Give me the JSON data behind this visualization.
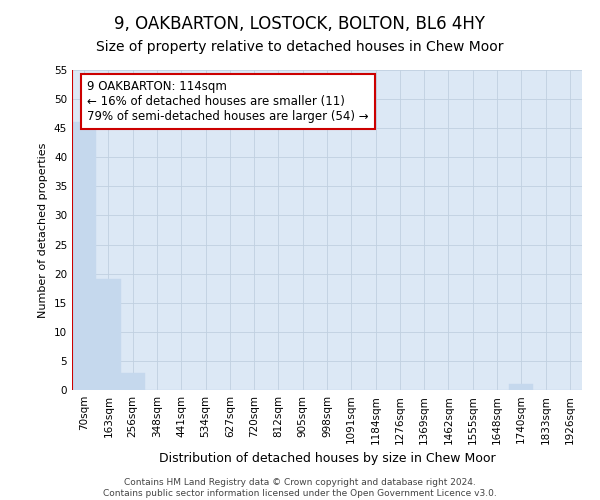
{
  "title": "9, OAKBARTON, LOSTOCK, BOLTON, BL6 4HY",
  "subtitle": "Size of property relative to detached houses in Chew Moor",
  "xlabel": "Distribution of detached houses by size in Chew Moor",
  "ylabel": "Number of detached properties",
  "categories": [
    "70sqm",
    "163sqm",
    "256sqm",
    "348sqm",
    "441sqm",
    "534sqm",
    "627sqm",
    "720sqm",
    "812sqm",
    "905sqm",
    "998sqm",
    "1091sqm",
    "1184sqm",
    "1276sqm",
    "1369sqm",
    "1462sqm",
    "1555sqm",
    "1648sqm",
    "1740sqm",
    "1833sqm",
    "1926sqm"
  ],
  "values": [
    46,
    19,
    3,
    0,
    0,
    0,
    0,
    0,
    0,
    0,
    0,
    0,
    0,
    0,
    0,
    0,
    0,
    0,
    1,
    0,
    0
  ],
  "bar_color": "#c5d8ed",
  "bar_edge_color": "#c5d8ed",
  "grid_color": "#c0d0e0",
  "background_color": "#dce8f5",
  "vline_color": "#cc0000",
  "annotation_text": "9 OAKBARTON: 114sqm\n← 16% of detached houses are smaller (11)\n79% of semi-detached houses are larger (54) →",
  "annotation_box_color": "white",
  "annotation_box_edge_color": "#cc0000",
  "ylim": [
    0,
    55
  ],
  "yticks": [
    0,
    5,
    10,
    15,
    20,
    25,
    30,
    35,
    40,
    45,
    50,
    55
  ],
  "footer_line1": "Contains HM Land Registry data © Crown copyright and database right 2024.",
  "footer_line2": "Contains public sector information licensed under the Open Government Licence v3.0.",
  "title_fontsize": 12,
  "subtitle_fontsize": 10,
  "xlabel_fontsize": 9,
  "ylabel_fontsize": 8,
  "tick_fontsize": 7.5,
  "annotation_fontsize": 8.5,
  "footer_fontsize": 6.5
}
